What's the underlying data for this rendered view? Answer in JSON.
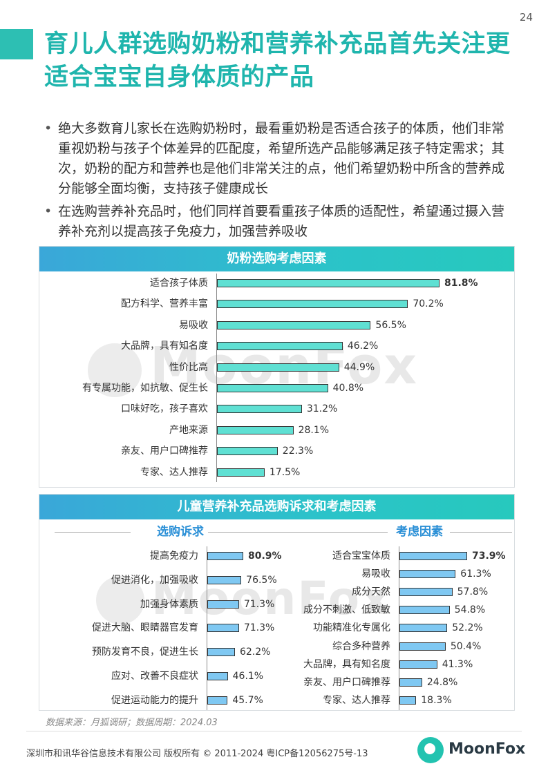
{
  "page_number": "24",
  "title": "育儿人群选购奶粉和营养补充品首先关注更适合宝宝自身体质的产品",
  "bullets": [
    "绝大多数育儿家长在选购奶粉时，最看重奶粉是否适合孩子的体质，他们非常重视奶粉与孩子个体差异的匹配度，希望所选产品能够满足孩子特定需求；其次，奶粉的配方和营养也是他们非常关注的点，他们希望奶粉中所含的营养成分能够全面均衡，支持孩子健康成长",
    "在选购营养补充品时，他们同样首要看重孩子体质的适配性，希望通过摄入营养补充剂以提高孩子免疫力，加强营养吸收"
  ],
  "watermark": "MoonFox",
  "source": "数据来源：月狐调研；数据周期：2024.03",
  "copyright": "深圳市和讯华谷信息技术有限公司 版权所有 © 2011-2024 粤ICP备12056275号-13",
  "logo_text": "MoonFox",
  "colors": {
    "accent": "#1fb5ad",
    "teal_bar": "#5fe0d3",
    "blue_bar": "#7fc8f2",
    "subhead": "#2a8fd6"
  },
  "chart_data": [
    {
      "type": "bar",
      "orientation": "horizontal",
      "title": "奶粉选购考虑因素",
      "unit": "%",
      "categories": [
        "适合孩子体质",
        "配方科学、营养丰富",
        "易吸收",
        "大品牌，具有知名度",
        "性价比高",
        "有专属功能，如抗敏、促生长",
        "口味好吃，孩子喜欢",
        "产地来源",
        "亲友、用户口碑推荐",
        "专家、达人推荐"
      ],
      "values": [
        81.8,
        70.2,
        56.5,
        46.2,
        44.9,
        40.8,
        31.2,
        28.1,
        22.3,
        17.5
      ],
      "labels": [
        "81.8%",
        "70.2%",
        "56.5%",
        "46.2%",
        "44.9%",
        "40.8%",
        "31.2%",
        "28.1%",
        "22.3%",
        "17.5%"
      ]
    },
    {
      "type": "bar",
      "orientation": "horizontal",
      "title": "儿童营养补充品选购诉求和考虑因素",
      "subtitle": "选购诉求",
      "unit": "%",
      "categories": [
        "提高免疫力",
        "促进消化，加强吸收",
        "加强身体素质",
        "促进大脑、眼睛器官发育",
        "预防发育不良，促进生长",
        "应对、改善不良症状",
        "促进运动能力的提升"
      ],
      "values": [
        80.9,
        76.5,
        71.3,
        71.3,
        62.2,
        46.1,
        45.7
      ],
      "labels": [
        "80.9%",
        "76.5%",
        "71.3%",
        "71.3%",
        "62.2%",
        "46.1%",
        "45.7%"
      ]
    },
    {
      "type": "bar",
      "orientation": "horizontal",
      "title": "儿童营养补充品选购诉求和考虑因素",
      "subtitle": "考虑因素",
      "unit": "%",
      "categories": [
        "适合宝宝体质",
        "易吸收",
        "成分天然",
        "成分不刺激、低致敏",
        "功能精准化专属化",
        "综合多种营养",
        "大品牌，具有知名度",
        "亲友、用户口碑推荐",
        "专家、达人推荐"
      ],
      "values": [
        73.9,
        61.3,
        57.8,
        54.8,
        52.2,
        50.4,
        41.3,
        24.8,
        18.3
      ],
      "labels": [
        "73.9%",
        "61.3%",
        "57.8%",
        "54.8%",
        "52.2%",
        "50.4%",
        "41.3%",
        "24.8%",
        "18.3%"
      ]
    }
  ]
}
